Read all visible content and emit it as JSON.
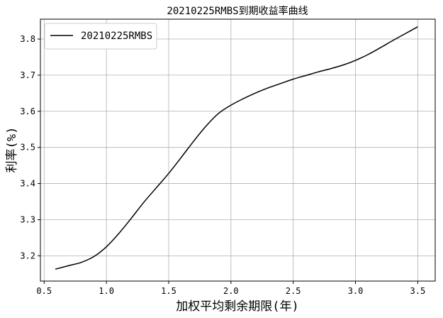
{
  "chart_data": {
    "type": "line",
    "title": "20210225RMBS到期收益率曲线",
    "xlabel": "加权平均剩余期限(年)",
    "ylabel": "利率(%)",
    "xlim": [
      0.47,
      3.64
    ],
    "ylim": [
      3.13,
      3.855
    ],
    "x_ticks": [
      0.5,
      1.0,
      1.5,
      2.0,
      2.5,
      3.0,
      3.5
    ],
    "x_tick_labels": [
      "0.5",
      "1.0",
      "1.5",
      "2.0",
      "2.5",
      "3.0",
      "3.5"
    ],
    "y_ticks": [
      3.2,
      3.3,
      3.4,
      3.5,
      3.6,
      3.7,
      3.8
    ],
    "y_tick_labels": [
      "3.2",
      "3.3",
      "3.4",
      "3.5",
      "3.6",
      "3.7",
      "3.8"
    ],
    "grid": true,
    "legend_position": "top-left",
    "series": [
      {
        "name": "20210225RMBS",
        "color": "#000000",
        "x": [
          0.59,
          0.7,
          0.8,
          0.9,
          1.0,
          1.1,
          1.2,
          1.3,
          1.4,
          1.5,
          1.6,
          1.7,
          1.8,
          1.9,
          2.0,
          2.1,
          2.2,
          2.3,
          2.4,
          2.5,
          2.6,
          2.7,
          2.8,
          2.9,
          3.0,
          3.1,
          3.2,
          3.3,
          3.4,
          3.5
        ],
        "y": [
          3.163,
          3.173,
          3.182,
          3.198,
          3.225,
          3.262,
          3.304,
          3.348,
          3.388,
          3.428,
          3.472,
          3.517,
          3.559,
          3.594,
          3.617,
          3.635,
          3.651,
          3.665,
          3.677,
          3.689,
          3.699,
          3.709,
          3.718,
          3.728,
          3.741,
          3.757,
          3.776,
          3.796,
          3.815,
          3.834
        ]
      }
    ]
  }
}
